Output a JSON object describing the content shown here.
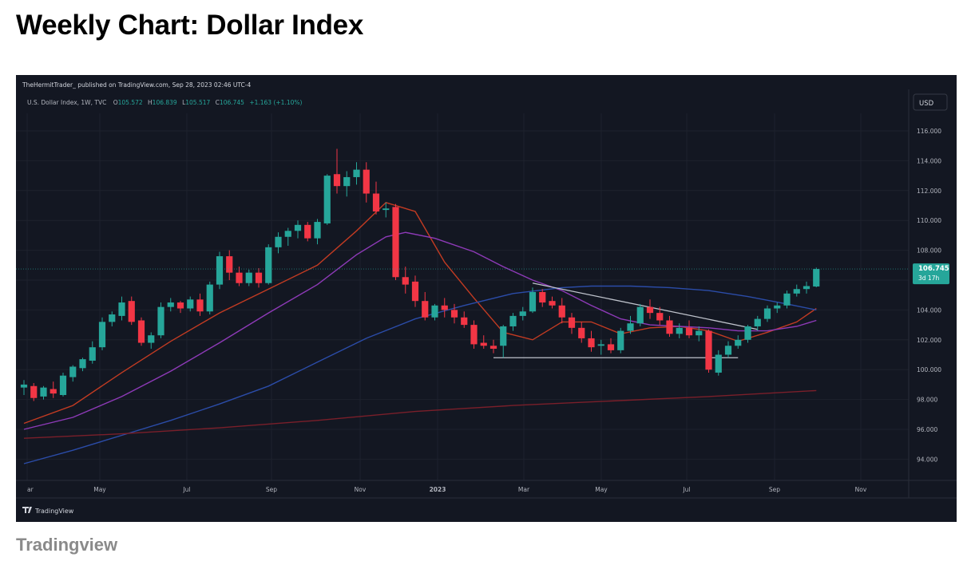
{
  "page": {
    "title": "Weekly Chart: Dollar Index",
    "caption": "Tradingview"
  },
  "tv": {
    "published_line": "TheHermitTrader_ published on TradingView.com, Sep 28, 2023 02:46 UTC-4",
    "symbol_line": "U.S. Dollar Index, 1W, TVC",
    "ohlc": {
      "o_label": "O",
      "o_value": "105.572",
      "h_label": "H",
      "h_value": "106.839",
      "l_label": "L",
      "l_value": "105.517",
      "c_label": "C",
      "c_value": "106.745",
      "change": "+1.163 (+1.10%)"
    },
    "currency_button": "USD",
    "price_badge": {
      "price": "106.745",
      "countdown": "3d 17h"
    },
    "logo_text": "TradingView"
  },
  "colors": {
    "background": "#131722",
    "up": "#26a69a",
    "down": "#f23645",
    "ma_fast": "#c23b22",
    "ma_mid": "#8e3ab8",
    "ma_slow": "#2b4ca8",
    "ma_long": "#7a1f2a",
    "trendline": "#bfc3cc",
    "axis_text": "#b2b5be"
  },
  "chart_data": {
    "type": "candlestick",
    "title": "U.S. Dollar Index, 1W, TVC",
    "ylabel": "USD",
    "ylim": [
      92.6,
      117.6
    ],
    "y_ticks": [
      "116.000",
      "114.000",
      "112.000",
      "110.000",
      "108.000",
      "106.000",
      "104.000",
      "102.000",
      "100.000",
      "98.000",
      "96.000",
      "94.000"
    ],
    "x_ticks": [
      "ar",
      "May",
      "Jul",
      "Sep",
      "Nov",
      "2023",
      "Mar",
      "May",
      "Jul",
      "Sep",
      "Nov"
    ],
    "last_price": 106.745,
    "candles": [
      {
        "o": 98.8,
        "h": 99.3,
        "l": 98.3,
        "c": 99.0
      },
      {
        "o": 98.9,
        "h": 99.1,
        "l": 97.9,
        "c": 98.1
      },
      {
        "o": 98.2,
        "h": 98.9,
        "l": 98.0,
        "c": 98.8
      },
      {
        "o": 98.7,
        "h": 99.2,
        "l": 98.1,
        "c": 98.4
      },
      {
        "o": 98.3,
        "h": 99.8,
        "l": 98.2,
        "c": 99.6
      },
      {
        "o": 99.5,
        "h": 100.3,
        "l": 99.2,
        "c": 100.2
      },
      {
        "o": 100.1,
        "h": 100.8,
        "l": 99.9,
        "c": 100.7
      },
      {
        "o": 100.6,
        "h": 101.9,
        "l": 100.4,
        "c": 101.5
      },
      {
        "o": 101.5,
        "h": 103.5,
        "l": 101.3,
        "c": 103.2
      },
      {
        "o": 103.2,
        "h": 103.9,
        "l": 102.9,
        "c": 103.7
      },
      {
        "o": 103.6,
        "h": 104.9,
        "l": 103.3,
        "c": 104.5
      },
      {
        "o": 104.6,
        "h": 104.9,
        "l": 103.0,
        "c": 103.2
      },
      {
        "o": 103.3,
        "h": 103.5,
        "l": 101.6,
        "c": 101.8
      },
      {
        "o": 101.8,
        "h": 102.5,
        "l": 101.4,
        "c": 102.3
      },
      {
        "o": 102.3,
        "h": 104.5,
        "l": 102.1,
        "c": 104.2
      },
      {
        "o": 104.2,
        "h": 104.8,
        "l": 103.9,
        "c": 104.5
      },
      {
        "o": 104.5,
        "h": 104.6,
        "l": 103.8,
        "c": 104.1
      },
      {
        "o": 104.1,
        "h": 104.9,
        "l": 103.9,
        "c": 104.7
      },
      {
        "o": 104.7,
        "h": 105.1,
        "l": 103.6,
        "c": 103.9
      },
      {
        "o": 103.9,
        "h": 105.9,
        "l": 103.7,
        "c": 105.7
      },
      {
        "o": 105.7,
        "h": 107.9,
        "l": 105.4,
        "c": 107.6
      },
      {
        "o": 107.6,
        "h": 108.0,
        "l": 106.0,
        "c": 106.5
      },
      {
        "o": 106.5,
        "h": 106.9,
        "l": 105.6,
        "c": 105.8
      },
      {
        "o": 105.8,
        "h": 106.7,
        "l": 105.6,
        "c": 106.5
      },
      {
        "o": 106.5,
        "h": 106.8,
        "l": 105.5,
        "c": 105.8
      },
      {
        "o": 105.8,
        "h": 108.4,
        "l": 105.7,
        "c": 108.2
      },
      {
        "o": 108.2,
        "h": 109.2,
        "l": 107.8,
        "c": 108.9
      },
      {
        "o": 108.9,
        "h": 109.5,
        "l": 108.3,
        "c": 109.3
      },
      {
        "o": 109.3,
        "h": 110.0,
        "l": 108.8,
        "c": 109.7
      },
      {
        "o": 109.7,
        "h": 109.9,
        "l": 108.6,
        "c": 108.8
      },
      {
        "o": 108.8,
        "h": 110.1,
        "l": 108.4,
        "c": 109.9
      },
      {
        "o": 109.8,
        "h": 113.1,
        "l": 109.7,
        "c": 113.0
      },
      {
        "o": 113.1,
        "h": 114.8,
        "l": 111.8,
        "c": 112.3
      },
      {
        "o": 112.3,
        "h": 113.3,
        "l": 111.6,
        "c": 112.9
      },
      {
        "o": 112.9,
        "h": 113.9,
        "l": 112.4,
        "c": 113.4
      },
      {
        "o": 113.4,
        "h": 113.9,
        "l": 111.2,
        "c": 111.8
      },
      {
        "o": 111.8,
        "h": 112.6,
        "l": 110.4,
        "c": 110.6
      },
      {
        "o": 110.7,
        "h": 111.2,
        "l": 110.2,
        "c": 110.8
      },
      {
        "o": 110.9,
        "h": 111.1,
        "l": 106.0,
        "c": 106.2
      },
      {
        "o": 106.2,
        "h": 106.9,
        "l": 105.1,
        "c": 105.7
      },
      {
        "o": 105.9,
        "h": 106.3,
        "l": 104.2,
        "c": 104.6
      },
      {
        "o": 104.6,
        "h": 105.2,
        "l": 103.3,
        "c": 103.5
      },
      {
        "o": 103.5,
        "h": 104.4,
        "l": 103.3,
        "c": 104.3
      },
      {
        "o": 104.3,
        "h": 104.8,
        "l": 103.5,
        "c": 104.0
      },
      {
        "o": 104.0,
        "h": 104.4,
        "l": 103.1,
        "c": 103.5
      },
      {
        "o": 103.5,
        "h": 103.9,
        "l": 102.8,
        "c": 103.0
      },
      {
        "o": 103.0,
        "h": 103.3,
        "l": 101.4,
        "c": 101.7
      },
      {
        "o": 101.8,
        "h": 102.3,
        "l": 101.4,
        "c": 101.6
      },
      {
        "o": 101.6,
        "h": 102.0,
        "l": 101.1,
        "c": 101.4
      },
      {
        "o": 101.6,
        "h": 103.0,
        "l": 100.8,
        "c": 102.9
      },
      {
        "o": 102.9,
        "h": 103.8,
        "l": 102.6,
        "c": 103.6
      },
      {
        "o": 103.6,
        "h": 104.2,
        "l": 103.3,
        "c": 103.9
      },
      {
        "o": 103.9,
        "h": 105.5,
        "l": 103.8,
        "c": 105.2
      },
      {
        "o": 105.2,
        "h": 105.4,
        "l": 104.2,
        "c": 104.5
      },
      {
        "o": 104.6,
        "h": 104.9,
        "l": 104.1,
        "c": 104.3
      },
      {
        "o": 104.3,
        "h": 104.8,
        "l": 103.1,
        "c": 103.5
      },
      {
        "o": 103.5,
        "h": 103.8,
        "l": 102.4,
        "c": 102.8
      },
      {
        "o": 102.8,
        "h": 103.2,
        "l": 101.8,
        "c": 102.1
      },
      {
        "o": 102.1,
        "h": 102.6,
        "l": 101.2,
        "c": 101.5
      },
      {
        "o": 101.6,
        "h": 102.0,
        "l": 101.0,
        "c": 101.7
      },
      {
        "o": 101.7,
        "h": 102.1,
        "l": 101.1,
        "c": 101.3
      },
      {
        "o": 101.3,
        "h": 102.8,
        "l": 101.1,
        "c": 102.6
      },
      {
        "o": 102.6,
        "h": 103.6,
        "l": 102.4,
        "c": 103.1
      },
      {
        "o": 103.1,
        "h": 104.4,
        "l": 102.9,
        "c": 104.2
      },
      {
        "o": 104.2,
        "h": 104.7,
        "l": 103.4,
        "c": 103.8
      },
      {
        "o": 103.8,
        "h": 104.2,
        "l": 103.0,
        "c": 103.3
      },
      {
        "o": 103.3,
        "h": 103.6,
        "l": 102.2,
        "c": 102.4
      },
      {
        "o": 102.4,
        "h": 103.1,
        "l": 102.1,
        "c": 102.8
      },
      {
        "o": 102.8,
        "h": 103.3,
        "l": 102.1,
        "c": 102.3
      },
      {
        "o": 102.3,
        "h": 102.9,
        "l": 101.9,
        "c": 102.6
      },
      {
        "o": 102.6,
        "h": 102.7,
        "l": 99.8,
        "c": 100.0
      },
      {
        "o": 99.8,
        "h": 101.3,
        "l": 99.6,
        "c": 101.0
      },
      {
        "o": 101.0,
        "h": 101.9,
        "l": 100.8,
        "c": 101.6
      },
      {
        "o": 101.6,
        "h": 102.3,
        "l": 101.4,
        "c": 102.0
      },
      {
        "o": 102.0,
        "h": 103.0,
        "l": 101.8,
        "c": 102.9
      },
      {
        "o": 102.9,
        "h": 103.6,
        "l": 102.6,
        "c": 103.4
      },
      {
        "o": 103.4,
        "h": 104.3,
        "l": 103.2,
        "c": 104.1
      },
      {
        "o": 104.1,
        "h": 104.5,
        "l": 103.8,
        "c": 104.3
      },
      {
        "o": 104.3,
        "h": 105.3,
        "l": 104.1,
        "c": 105.1
      },
      {
        "o": 105.1,
        "h": 105.7,
        "l": 104.9,
        "c": 105.4
      },
      {
        "o": 105.4,
        "h": 105.9,
        "l": 105.1,
        "c": 105.6
      },
      {
        "o": 105.572,
        "h": 106.839,
        "l": 105.517,
        "c": 106.745
      }
    ],
    "moving_averages": [
      {
        "color": "#c23b22",
        "points": [
          [
            0,
            96.4
          ],
          [
            5,
            97.6
          ],
          [
            10,
            99.8
          ],
          [
            15,
            101.9
          ],
          [
            20,
            103.8
          ],
          [
            25,
            105.4
          ],
          [
            30,
            107.0
          ],
          [
            34,
            109.3
          ],
          [
            37,
            111.2
          ],
          [
            40,
            110.6
          ],
          [
            43,
            107.2
          ],
          [
            46,
            104.8
          ],
          [
            49,
            102.5
          ],
          [
            52,
            102.0
          ],
          [
            55,
            103.2
          ],
          [
            58,
            103.2
          ],
          [
            61,
            102.4
          ],
          [
            64,
            102.8
          ],
          [
            67,
            102.9
          ],
          [
            70,
            102.6
          ],
          [
            73,
            101.9
          ],
          [
            76,
            102.5
          ],
          [
            79,
            103.2
          ],
          [
            81,
            104.1
          ]
        ]
      },
      {
        "color": "#8e3ab8",
        "points": [
          [
            0,
            96.0
          ],
          [
            5,
            96.8
          ],
          [
            10,
            98.2
          ],
          [
            15,
            99.9
          ],
          [
            20,
            101.8
          ],
          [
            25,
            103.8
          ],
          [
            30,
            105.7
          ],
          [
            34,
            107.7
          ],
          [
            37,
            108.9
          ],
          [
            39,
            109.2
          ],
          [
            42,
            108.8
          ],
          [
            46,
            107.9
          ],
          [
            49,
            106.9
          ],
          [
            52,
            106.0
          ],
          [
            55,
            105.3
          ],
          [
            58,
            104.3
          ],
          [
            61,
            103.4
          ],
          [
            64,
            103.0
          ],
          [
            67,
            102.9
          ],
          [
            70,
            102.8
          ],
          [
            73,
            102.6
          ],
          [
            76,
            102.6
          ],
          [
            79,
            102.9
          ],
          [
            81,
            103.3
          ]
        ]
      },
      {
        "color": "#2b4ca8",
        "points": [
          [
            0,
            93.7
          ],
          [
            5,
            94.6
          ],
          [
            10,
            95.6
          ],
          [
            15,
            96.6
          ],
          [
            20,
            97.7
          ],
          [
            25,
            98.9
          ],
          [
            30,
            100.5
          ],
          [
            35,
            102.1
          ],
          [
            40,
            103.4
          ],
          [
            45,
            104.3
          ],
          [
            50,
            105.1
          ],
          [
            55,
            105.5
          ],
          [
            58,
            105.6
          ],
          [
            62,
            105.6
          ],
          [
            66,
            105.5
          ],
          [
            70,
            105.3
          ],
          [
            74,
            104.9
          ],
          [
            78,
            104.4
          ],
          [
            81,
            104.0
          ]
        ]
      },
      {
        "color": "#7a1f2a",
        "points": [
          [
            0,
            95.4
          ],
          [
            10,
            95.7
          ],
          [
            20,
            96.1
          ],
          [
            30,
            96.6
          ],
          [
            40,
            97.2
          ],
          [
            50,
            97.6
          ],
          [
            60,
            97.9
          ],
          [
            70,
            98.2
          ],
          [
            81,
            98.6
          ]
        ]
      }
    ],
    "trendlines": [
      {
        "from": [
          52,
          105.8
        ],
        "to": [
          75,
          102.7
        ]
      },
      {
        "from": [
          48,
          100.8
        ],
        "to": [
          73,
          100.8
        ]
      }
    ]
  }
}
